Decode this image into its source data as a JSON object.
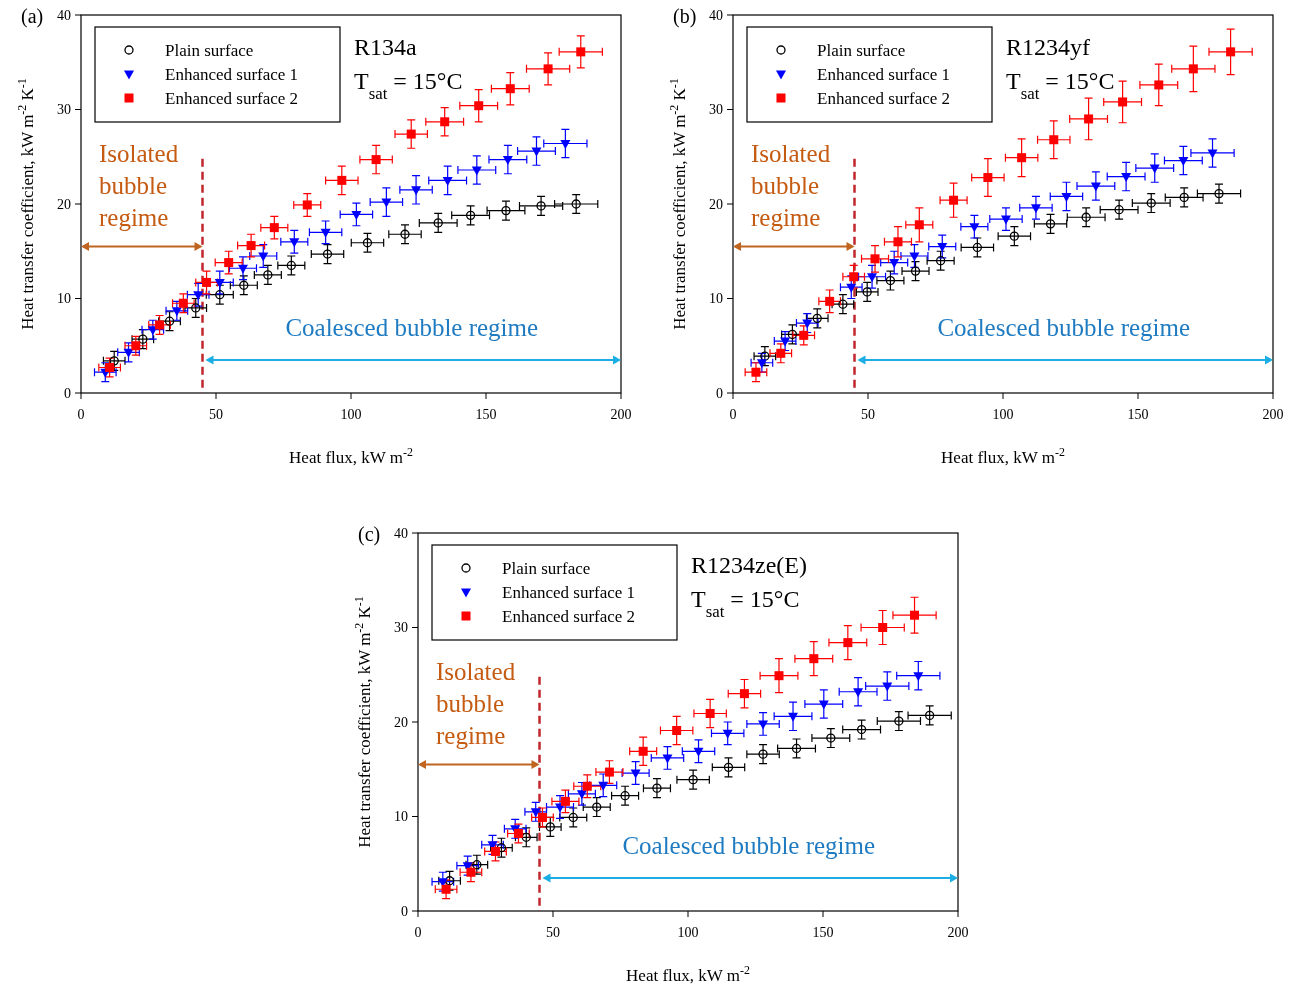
{
  "chart_data": [
    {
      "type": "scatter",
      "title": "(a)",
      "xlabel": "Heat flux, kW m$^{-2}$",
      "ylabel": "Heat transfer coefficient, kW m$^{-2}$ K$^{-1}$",
      "xlim": [
        0,
        200
      ],
      "ylim": [
        0,
        40
      ],
      "xticks": [
        0,
        50,
        100,
        150,
        200
      ],
      "yticks": [
        0,
        10,
        20,
        30,
        40
      ],
      "legend": "top left",
      "annotations": [
        "Isolated bubble regime",
        "Coalesced bubble regime",
        "R134a",
        "T$_{sat}$ = 15°C"
      ],
      "ref_lines": [
        {
          "axis": "x",
          "value": 45,
          "color": "#c0272d",
          "line_style": "dashed"
        }
      ],
      "series": [
        {
          "name": "Plain surface",
          "color": "#000000",
          "marker": "circle",
          "x": [
            12.3,
            22.9,
            32.8,
            42.5,
            51.4,
            60.3,
            69.2,
            77.9,
            91.3,
            106.1,
            120.0,
            132.3,
            144.3,
            157.4,
            170.4,
            183.4
          ],
          "values": [
            3.4,
            5.7,
            7.6,
            9.0,
            10.4,
            11.4,
            12.5,
            13.5,
            14.7,
            15.9,
            16.8,
            18.0,
            18.8,
            19.3,
            19.8,
            20.0
          ],
          "errors": [
            1,
            1,
            1,
            1,
            1,
            1,
            1,
            1,
            1,
            1,
            1,
            1,
            1,
            1,
            1,
            1
          ],
          "xerrors": [
            4,
            4,
            4,
            4,
            5,
            5,
            5,
            5,
            6,
            6,
            6,
            7,
            7,
            7,
            8,
            8
          ]
        },
        {
          "name": "Enhanced surface 1",
          "color": "#0000ff",
          "marker": "triangle",
          "x": [
            9.0,
            17.6,
            26.6,
            35.5,
            43.4,
            51.4,
            60.0,
            67.5,
            79.0,
            90.6,
            102.0,
            113.1,
            124.1,
            135.8,
            146.6,
            158.1,
            168.7,
            179.4
          ],
          "values": [
            2.2,
            4.3,
            6.7,
            8.7,
            10.4,
            11.7,
            13.2,
            14.5,
            16.0,
            17.0,
            18.9,
            20.2,
            21.5,
            22.5,
            23.6,
            24.7,
            25.6,
            26.4
          ],
          "errors": [
            1,
            1,
            1,
            1,
            1.2,
            1.2,
            1.2,
            1.2,
            1.2,
            1.2,
            1.2,
            1.5,
            1.5,
            1.5,
            1.5,
            1.5,
            1.5,
            1.5
          ],
          "xerrors": [
            4,
            4,
            4,
            4,
            4,
            5,
            5,
            5,
            5,
            6,
            6,
            6,
            6,
            7,
            7,
            7,
            7,
            8
          ]
        },
        {
          "name": "Enhanced surface 2",
          "color": "#ff0000",
          "marker": "square",
          "x": [
            10.6,
            20.3,
            29.1,
            37.9,
            46.5,
            54.7,
            63.0,
            71.6,
            83.8,
            96.6,
            109.3,
            122.3,
            134.7,
            147.3,
            159.0,
            173.0,
            185.1
          ],
          "values": [
            2.7,
            5.0,
            7.2,
            9.5,
            11.7,
            13.8,
            15.6,
            17.5,
            19.9,
            22.5,
            24.7,
            27.4,
            28.7,
            30.4,
            32.2,
            34.3,
            36.1
          ],
          "errors": [
            1,
            1,
            1,
            1,
            1.2,
            1.2,
            1.2,
            1.2,
            1.2,
            1.5,
            1.5,
            1.5,
            1.5,
            1.7,
            1.7,
            1.7,
            1.7
          ],
          "xerrors": [
            4,
            4,
            4,
            4,
            4,
            5,
            5,
            5,
            5,
            6,
            6,
            6,
            7,
            7,
            7,
            8,
            8
          ]
        }
      ]
    },
    {
      "type": "scatter",
      "title": "(b)",
      "xlabel": "Heat flux, kW m$^{-2}$",
      "ylabel": "Heat transfer coefficient, kW m$^{-2}$ K$^{-1}$",
      "xlim": [
        0,
        200
      ],
      "ylim": [
        0,
        40
      ],
      "xticks": [
        0,
        50,
        100,
        150,
        200
      ],
      "yticks": [
        0,
        10,
        20,
        30,
        40
      ],
      "legend": "top left",
      "annotations": [
        "Isolated bubble regime",
        "Coalesced bubble regime",
        "R1234yf",
        "T$_{sat}$ = 15°C"
      ],
      "ref_lines": [
        {
          "axis": "x",
          "value": 45,
          "color": "#c0272d",
          "line_style": "dashed"
        }
      ],
      "series": [
        {
          "name": "Plain surface",
          "color": "#000000",
          "marker": "circle",
          "x": [
            11.8,
            22.0,
            31.2,
            40.7,
            49.7,
            58.3,
            67.6,
            76.9,
            90.5,
            104.2,
            117.6,
            130.8,
            143.0,
            154.9,
            167.1,
            180.0
          ],
          "values": [
            3.9,
            6.2,
            7.9,
            9.4,
            10.7,
            11.9,
            12.9,
            14.0,
            15.4,
            16.6,
            17.9,
            18.6,
            19.4,
            20.1,
            20.7,
            21.1
          ],
          "errors": [
            1,
            1,
            1,
            1,
            1,
            1,
            1,
            1,
            1,
            1,
            1,
            1,
            1,
            1,
            1,
            1
          ],
          "xerrors": [
            4,
            4,
            4,
            4,
            4,
            5,
            5,
            5,
            6,
            6,
            6,
            7,
            7,
            7,
            7,
            8
          ]
        },
        {
          "name": "Enhanced surface 1",
          "color": "#0000ff",
          "marker": "triangle",
          "x": [
            10.7,
            19.3,
            27.5,
            43.8,
            51.5,
            59.7,
            67.2,
            77.5,
            89.4,
            101.1,
            112.2,
            123.5,
            134.4,
            145.6,
            156.2,
            166.8,
            177.6
          ],
          "values": [
            3.2,
            5.5,
            7.4,
            11.2,
            12.3,
            13.8,
            14.5,
            15.5,
            17.6,
            18.4,
            19.6,
            20.8,
            21.9,
            22.9,
            23.8,
            24.6,
            25.4
          ],
          "errors": [
            1,
            1,
            1,
            1.2,
            1.2,
            1.2,
            1.2,
            1.2,
            1.2,
            1.2,
            1.2,
            1.5,
            1.5,
            1.5,
            1.5,
            1.5,
            1.5
          ],
          "xerrors": [
            4,
            4,
            4,
            4,
            5,
            5,
            5,
            5,
            5,
            6,
            6,
            6,
            7,
            7,
            7,
            7,
            8
          ]
        },
        {
          "name": "Enhanced surface 2",
          "color": "#ff0000",
          "marker": "square",
          "x": [
            8.5,
            17.7,
            26.2,
            35.8,
            44.7,
            52.6,
            61.1,
            69.0,
            81.7,
            94.4,
            106.9,
            118.8,
            131.7,
            144.3,
            157.7,
            170.5,
            184.3
          ],
          "values": [
            2.2,
            4.2,
            6.1,
            9.7,
            12.3,
            14.2,
            16.0,
            17.8,
            20.4,
            22.8,
            24.9,
            26.8,
            29.0,
            30.8,
            32.6,
            34.3,
            36.1
          ],
          "errors": [
            1,
            1,
            1,
            1.2,
            1.2,
            1.4,
            1.6,
            1.8,
            1.8,
            2,
            2,
            2,
            2.2,
            2.2,
            2.2,
            2.4,
            2.4
          ],
          "xerrors": [
            4,
            4,
            4,
            4,
            4,
            5,
            5,
            5,
            5,
            6,
            6,
            6,
            7,
            7,
            7,
            8,
            8
          ]
        }
      ]
    },
    {
      "type": "scatter",
      "title": "(c)",
      "xlabel": "Heat flux, kW m$^{-2}$",
      "ylabel": "Heat transfer coefficient, kW m$^{-2}$ K$^{-1}$",
      "xlim": [
        0,
        200
      ],
      "ylim": [
        0,
        40
      ],
      "xticks": [
        0,
        50,
        100,
        150,
        200
      ],
      "yticks": [
        0,
        10,
        20,
        30,
        40
      ],
      "legend": "top left",
      "annotations": [
        "Isolated bubble regime",
        "Coalesced bubble regime",
        "R1234ze(E)",
        "T$_{sat}$ = 15°C"
      ],
      "ref_lines": [
        {
          "axis": "x",
          "value": 45,
          "color": "#c0272d",
          "line_style": "dashed"
        }
      ],
      "series": [
        {
          "name": "Plain surface",
          "color": "#000000",
          "marker": "circle",
          "x": [
            11.7,
            21.8,
            30.9,
            40.1,
            49.0,
            57.5,
            66.2,
            76.7,
            88.5,
            101.9,
            115.0,
            127.8,
            140.2,
            152.9,
            164.3,
            178.1,
            189.5
          ],
          "values": [
            3.2,
            4.9,
            6.7,
            7.8,
            8.9,
            9.9,
            11.0,
            12.2,
            13.0,
            13.9,
            15.2,
            16.6,
            17.2,
            18.3,
            19.2,
            20.1,
            20.7
          ],
          "errors": [
            1,
            1,
            1,
            1,
            1,
            1,
            1,
            1,
            1,
            1,
            1,
            1,
            1,
            1,
            1,
            1,
            1
          ],
          "xerrors": [
            4,
            4,
            4,
            4,
            4,
            5,
            5,
            5,
            5,
            6,
            6,
            6,
            7,
            7,
            7,
            8,
            8
          ]
        },
        {
          "name": "Enhanced surface 1",
          "color": "#0000ff",
          "marker": "triangle",
          "x": [
            9.2,
            18.4,
            27.6,
            36.0,
            43.6,
            52.6,
            60.7,
            68.6,
            80.6,
            92.4,
            103.9,
            114.7,
            127.8,
            138.9,
            150.3,
            163.0,
            173.8,
            185.3
          ],
          "values": [
            3.1,
            4.8,
            7.0,
            8.7,
            10.5,
            11.0,
            12.4,
            13.3,
            14.6,
            16.2,
            16.9,
            18.8,
            19.8,
            20.6,
            21.9,
            23.2,
            23.8,
            24.9
          ],
          "errors": [
            1,
            1,
            1,
            1,
            1,
            1.2,
            1.2,
            1.2,
            1.2,
            1.2,
            1.2,
            1.2,
            1.2,
            1.5,
            1.5,
            1.5,
            1.5,
            1.5
          ],
          "xerrors": [
            4,
            4,
            4,
            4,
            4,
            5,
            5,
            5,
            5,
            6,
            6,
            6,
            6,
            7,
            7,
            7,
            8,
            8
          ]
        },
        {
          "name": "Enhanced surface 2",
          "color": "#ff0000",
          "marker": "square",
          "x": [
            10.4,
            19.6,
            28.7,
            37.2,
            46.1,
            54.6,
            62.7,
            70.9,
            83.4,
            95.8,
            108.2,
            120.9,
            133.7,
            146.6,
            159.2,
            172.1,
            183.9
          ],
          "values": [
            2.3,
            4.1,
            6.3,
            8.2,
            9.9,
            11.6,
            13.2,
            14.7,
            16.9,
            19.1,
            20.9,
            23.0,
            24.9,
            26.7,
            28.4,
            30.0,
            31.3
          ],
          "errors": [
            1,
            1,
            1,
            1,
            1,
            1.2,
            1.2,
            1.2,
            1.5,
            1.5,
            1.5,
            1.5,
            1.8,
            1.8,
            1.8,
            1.8,
            1.9
          ],
          "xerrors": [
            4,
            4,
            4,
            4,
            4,
            5,
            5,
            5,
            5,
            6,
            6,
            6,
            7,
            7,
            7,
            8,
            8
          ]
        }
      ]
    }
  ]
}
